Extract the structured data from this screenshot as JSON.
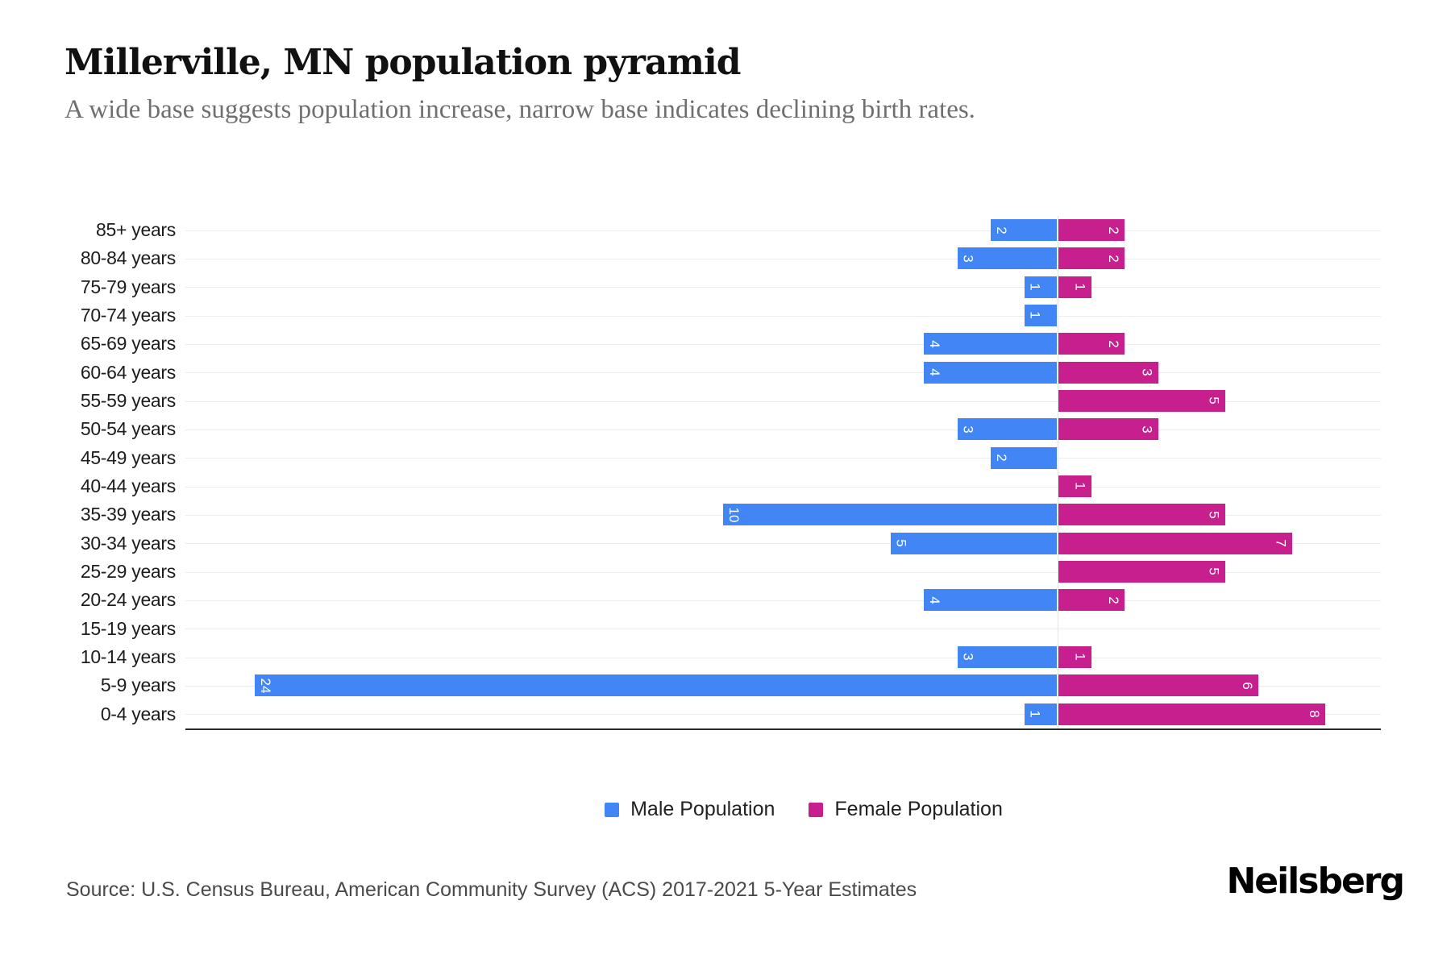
{
  "header": {
    "title": "Millerville, MN population pyramid",
    "subtitle": "A wide base suggests population increase, narrow base indicates declining birth rates."
  },
  "chart_data": {
    "type": "bar",
    "variant": "population-pyramid-horizontal",
    "title": "Millerville, MN population pyramid",
    "categories": [
      "85+ years",
      "80-84 years",
      "75-79 years",
      "70-74 years",
      "65-69 years",
      "60-64 years",
      "55-59 years",
      "50-54 years",
      "45-49 years",
      "40-44 years",
      "35-39 years",
      "30-34 years",
      "25-29 years",
      "20-24 years",
      "15-19 years",
      "10-14 years",
      "5-9 years",
      "0-4 years"
    ],
    "series": [
      {
        "name": "Male Population",
        "color": "#4285F4",
        "side": "left",
        "values": [
          2,
          3,
          1,
          1,
          4,
          4,
          0,
          3,
          2,
          0,
          10,
          5,
          0,
          4,
          0,
          3,
          24,
          1
        ]
      },
      {
        "name": "Female Population",
        "color": "#C71F8E",
        "side": "right",
        "values": [
          2,
          2,
          1,
          0,
          2,
          3,
          5,
          3,
          0,
          1,
          5,
          7,
          5,
          2,
          0,
          1,
          6,
          8
        ]
      }
    ],
    "xlim": {
      "male": [
        0,
        26
      ],
      "female": [
        0,
        10
      ]
    },
    "grid": true,
    "bar_value_labels": "inside-end, rotated 90deg, white",
    "legend_position": "bottom-center"
  },
  "legend": {
    "items": [
      {
        "label": "Male Population",
        "color": "#4285F4"
      },
      {
        "label": "Female Population",
        "color": "#C71F8E"
      }
    ]
  },
  "footer": {
    "source": "Source: U.S. Census Bureau, American Community Survey (ACS) 2017-2021 5-Year Estimates",
    "logo": "Neilsberg"
  }
}
